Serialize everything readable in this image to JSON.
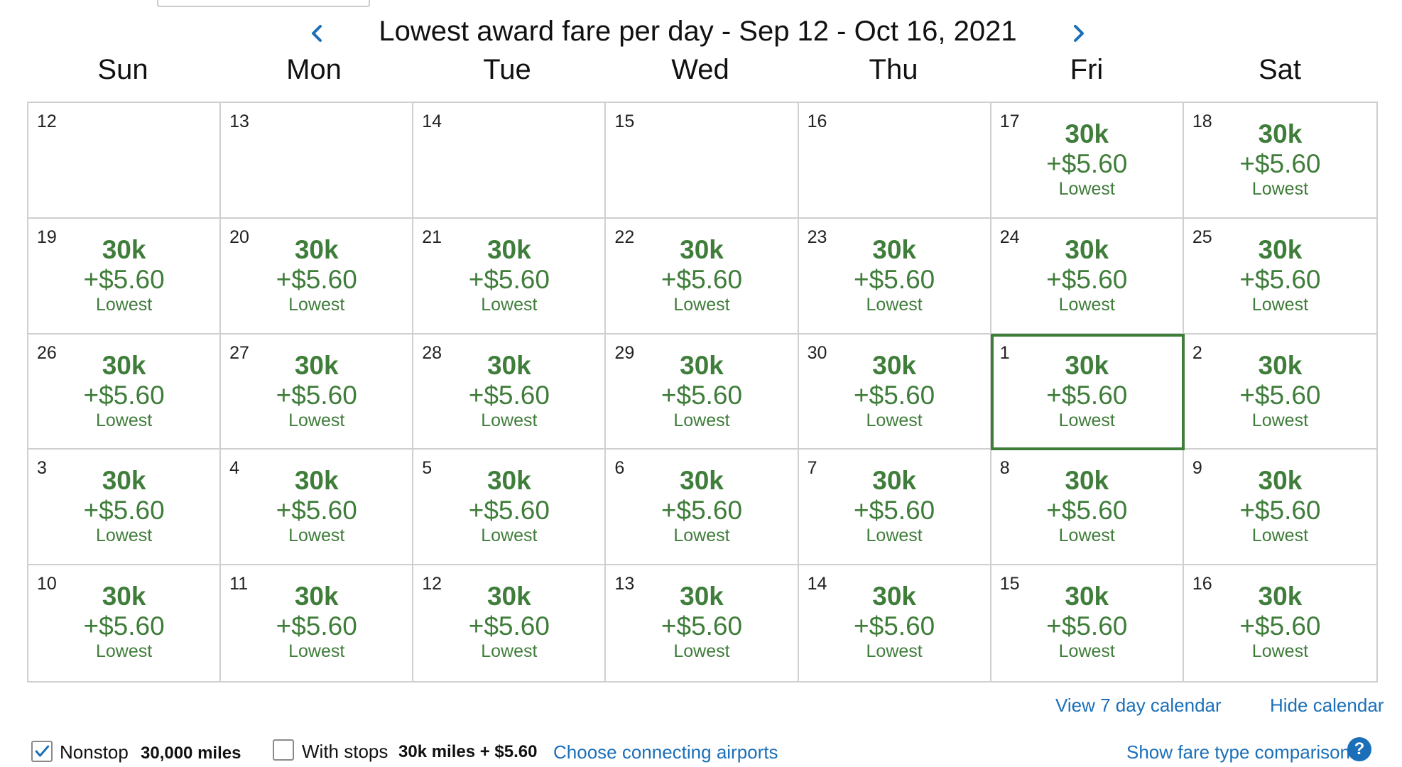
{
  "title": "Lowest award fare per day - Sep 12 - Oct 16, 2021",
  "nav": {
    "prev_icon": "chevron-left-icon",
    "next_icon": "chevron-right-icon"
  },
  "days_of_week": [
    "Sun",
    "Mon",
    "Tue",
    "Wed",
    "Thu",
    "Fri",
    "Sat"
  ],
  "colors": {
    "fare_green": "#3f7d3a",
    "link_blue": "#1b6fb8",
    "grid_border": "#cfcfcf"
  },
  "weeks": [
    [
      {
        "day": "12"
      },
      {
        "day": "13"
      },
      {
        "day": "14"
      },
      {
        "day": "15"
      },
      {
        "day": "16"
      },
      {
        "day": "17",
        "miles": "30k",
        "cash": "+$5.60",
        "tag": "Lowest"
      },
      {
        "day": "18",
        "miles": "30k",
        "cash": "+$5.60",
        "tag": "Lowest"
      }
    ],
    [
      {
        "day": "19",
        "miles": "30k",
        "cash": "+$5.60",
        "tag": "Lowest"
      },
      {
        "day": "20",
        "miles": "30k",
        "cash": "+$5.60",
        "tag": "Lowest"
      },
      {
        "day": "21",
        "miles": "30k",
        "cash": "+$5.60",
        "tag": "Lowest"
      },
      {
        "day": "22",
        "miles": "30k",
        "cash": "+$5.60",
        "tag": "Lowest"
      },
      {
        "day": "23",
        "miles": "30k",
        "cash": "+$5.60",
        "tag": "Lowest"
      },
      {
        "day": "24",
        "miles": "30k",
        "cash": "+$5.60",
        "tag": "Lowest"
      },
      {
        "day": "25",
        "miles": "30k",
        "cash": "+$5.60",
        "tag": "Lowest"
      }
    ],
    [
      {
        "day": "26",
        "miles": "30k",
        "cash": "+$5.60",
        "tag": "Lowest"
      },
      {
        "day": "27",
        "miles": "30k",
        "cash": "+$5.60",
        "tag": "Lowest"
      },
      {
        "day": "28",
        "miles": "30k",
        "cash": "+$5.60",
        "tag": "Lowest"
      },
      {
        "day": "29",
        "miles": "30k",
        "cash": "+$5.60",
        "tag": "Lowest"
      },
      {
        "day": "30",
        "miles": "30k",
        "cash": "+$5.60",
        "tag": "Lowest"
      },
      {
        "day": "1",
        "miles": "30k",
        "cash": "+$5.60",
        "tag": "Lowest",
        "selected": true
      },
      {
        "day": "2",
        "miles": "30k",
        "cash": "+$5.60",
        "tag": "Lowest"
      }
    ],
    [
      {
        "day": "3",
        "miles": "30k",
        "cash": "+$5.60",
        "tag": "Lowest"
      },
      {
        "day": "4",
        "miles": "30k",
        "cash": "+$5.60",
        "tag": "Lowest"
      },
      {
        "day": "5",
        "miles": "30k",
        "cash": "+$5.60",
        "tag": "Lowest"
      },
      {
        "day": "6",
        "miles": "30k",
        "cash": "+$5.60",
        "tag": "Lowest"
      },
      {
        "day": "7",
        "miles": "30k",
        "cash": "+$5.60",
        "tag": "Lowest"
      },
      {
        "day": "8",
        "miles": "30k",
        "cash": "+$5.60",
        "tag": "Lowest"
      },
      {
        "day": "9",
        "miles": "30k",
        "cash": "+$5.60",
        "tag": "Lowest"
      }
    ],
    [
      {
        "day": "10",
        "miles": "30k",
        "cash": "+$5.60",
        "tag": "Lowest"
      },
      {
        "day": "11",
        "miles": "30k",
        "cash": "+$5.60",
        "tag": "Lowest"
      },
      {
        "day": "12",
        "miles": "30k",
        "cash": "+$5.60",
        "tag": "Lowest"
      },
      {
        "day": "13",
        "miles": "30k",
        "cash": "+$5.60",
        "tag": "Lowest"
      },
      {
        "day": "14",
        "miles": "30k",
        "cash": "+$5.60",
        "tag": "Lowest"
      },
      {
        "day": "15",
        "miles": "30k",
        "cash": "+$5.60",
        "tag": "Lowest"
      },
      {
        "day": "16",
        "miles": "30k",
        "cash": "+$5.60",
        "tag": "Lowest"
      }
    ]
  ],
  "links": {
    "view_7_day": "View 7 day calendar",
    "hide_calendar": "Hide calendar"
  },
  "filters": {
    "nonstop": {
      "label": "Nonstop",
      "value": "30,000 miles",
      "checked": true
    },
    "with_stops": {
      "label": "With stops",
      "value": "30k miles + $5.60",
      "checked": false
    },
    "choose_connecting": "Choose connecting airports",
    "fare_comparison": "Show fare type comparison",
    "help_icon": "question-circle-icon",
    "help_glyph": "?"
  }
}
